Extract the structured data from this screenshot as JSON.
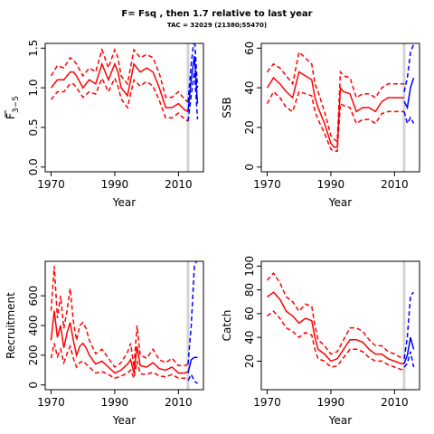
{
  "figure": {
    "title": "F= Fsq , then 1.7  relative to last year",
    "subtitle": "TAC = 32029 (21380;55470)"
  },
  "colors": {
    "historic": "#ff0000",
    "projection": "#0000ff",
    "marker": "#d3d3d3"
  },
  "chart_data": [
    {
      "type": "line",
      "ylabel": "F3-5",
      "xlabel": "Year",
      "ylabel_main": "F",
      "ylabel_sub": "3−5",
      "xlim": [
        1970,
        2016
      ],
      "ylim": [
        0,
        1.5
      ],
      "xticks": [
        1970,
        1990,
        2010
      ],
      "yticks": [
        0.0,
        0.5,
        1.0,
        1.5
      ],
      "xtick_labels": [
        "1970",
        "1990",
        "2010"
      ],
      "ytick_labels": [
        "0.0",
        "0.5",
        "1.0",
        "1.5"
      ],
      "marker_year": 2013,
      "historic": {
        "x": [
          1970,
          1972,
          1974,
          1976,
          1977,
          1978,
          1980,
          1982,
          1984,
          1986,
          1988,
          1990,
          1991,
          1992,
          1994,
          1996,
          1998,
          2000,
          2002,
          2004,
          2006,
          2008,
          2010,
          2012,
          2013
        ],
        "mid": [
          1.0,
          1.1,
          1.1,
          1.2,
          1.2,
          1.15,
          1.0,
          1.1,
          1.05,
          1.3,
          1.1,
          1.3,
          1.2,
          1.0,
          0.9,
          1.3,
          1.2,
          1.25,
          1.2,
          1.0,
          0.75,
          0.75,
          0.8,
          0.72,
          0.7
        ],
        "upper": [
          1.15,
          1.28,
          1.25,
          1.38,
          1.35,
          1.3,
          1.15,
          1.25,
          1.2,
          1.48,
          1.25,
          1.48,
          1.38,
          1.15,
          1.05,
          1.48,
          1.38,
          1.42,
          1.38,
          1.18,
          0.88,
          0.88,
          0.95,
          0.85,
          0.82
        ],
        "lower": [
          0.85,
          0.95,
          0.95,
          1.05,
          1.05,
          1.0,
          0.88,
          0.95,
          0.92,
          1.12,
          0.95,
          1.12,
          1.02,
          0.86,
          0.75,
          1.1,
          1.02,
          1.08,
          1.02,
          0.84,
          0.62,
          0.62,
          0.68,
          0.6,
          0.58
        ]
      },
      "projection": {
        "x": [
          2013,
          2014,
          2015,
          2016
        ],
        "mid": [
          0.7,
          1.1,
          1.4,
          0.8
        ],
        "upper": [
          0.82,
          1.3,
          1.65,
          1.0
        ],
        "lower": [
          0.58,
          0.9,
          1.2,
          0.6
        ]
      }
    },
    {
      "type": "line",
      "ylabel": "SSB",
      "xlabel": "Year",
      "xlim": [
        1970,
        2016
      ],
      "ylim": [
        0,
        60
      ],
      "xticks": [
        1970,
        1990,
        2010
      ],
      "yticks": [
        0,
        20,
        40,
        60
      ],
      "xtick_labels": [
        "1970",
        "1990",
        "2010"
      ],
      "ytick_labels": [
        "0",
        "20",
        "40",
        "60"
      ],
      "marker_year": 2013,
      "historic": {
        "x": [
          1970,
          1972,
          1974,
          1976,
          1978,
          1980,
          1982,
          1984,
          1985,
          1986,
          1988,
          1990,
          1991,
          1992,
          1993,
          1994,
          1996,
          1998,
          2000,
          2002,
          2004,
          2006,
          2008,
          2010,
          2012,
          2013
        ],
        "mid": [
          40,
          45,
          42,
          38,
          35,
          48,
          46,
          44,
          35,
          30,
          22,
          12,
          10,
          10,
          40,
          38,
          37,
          28,
          30,
          30,
          28,
          33,
          35,
          35,
          35,
          35
        ],
        "upper": [
          48,
          52,
          50,
          46,
          42,
          58,
          55,
          52,
          42,
          38,
          28,
          16,
          14,
          13,
          48,
          46,
          45,
          35,
          37,
          37,
          35,
          40,
          42,
          42,
          42,
          42
        ],
        "lower": [
          32,
          38,
          35,
          30,
          28,
          38,
          37,
          36,
          28,
          24,
          17,
          9,
          8,
          8,
          32,
          31,
          30,
          22,
          24,
          24,
          22,
          27,
          28,
          28,
          28,
          28
        ]
      },
      "projection": {
        "x": [
          2013,
          2014,
          2015,
          2016
        ],
        "mid": [
          33,
          30,
          40,
          45
        ],
        "upper": [
          38,
          45,
          58,
          62
        ],
        "lower": [
          28,
          22,
          25,
          22
        ]
      }
    },
    {
      "type": "line",
      "ylabel": "Recruitment",
      "xlabel": "Year",
      "xlim": [
        1970,
        2016
      ],
      "ylim": [
        0,
        800
      ],
      "xticks": [
        1970,
        1990,
        2010
      ],
      "yticks": [
        0,
        200,
        400,
        600
      ],
      "xtick_labels": [
        "1970",
        "1990",
        "2010"
      ],
      "ytick_labels": [
        "0",
        "200",
        "400",
        "600"
      ],
      "marker_year": 2013,
      "historic": {
        "x": [
          1970,
          1971,
          1972,
          1973,
          1974,
          1975,
          1976,
          1977,
          1978,
          1979,
          1980,
          1981,
          1982,
          1984,
          1986,
          1988,
          1990,
          1992,
          1994,
          1995,
          1996,
          1997,
          1998,
          2000,
          2002,
          2004,
          2006,
          2008,
          2010,
          2012,
          2013
        ],
        "mid": [
          300,
          500,
          320,
          400,
          250,
          350,
          420,
          300,
          200,
          260,
          280,
          250,
          200,
          140,
          160,
          120,
          80,
          100,
          140,
          170,
          80,
          260,
          130,
          120,
          150,
          110,
          100,
          120,
          80,
          80,
          90
        ],
        "upper": [
          500,
          800,
          450,
          600,
          380,
          500,
          650,
          430,
          300,
          400,
          420,
          380,
          300,
          210,
          240,
          180,
          120,
          150,
          220,
          280,
          120,
          400,
          200,
          180,
          240,
          170,
          150,
          180,
          130,
          130,
          140
        ],
        "lower": [
          180,
          280,
          190,
          240,
          150,
          210,
          260,
          180,
          120,
          150,
          160,
          140,
          120,
          80,
          90,
          70,
          45,
          60,
          80,
          100,
          45,
          160,
          75,
          70,
          85,
          60,
          55,
          70,
          45,
          45,
          50
        ]
      },
      "projection": {
        "x": [
          2013,
          2014,
          2015,
          2016
        ],
        "mid": [
          80,
          170,
          185,
          185
        ],
        "upper": [
          140,
          400,
          800,
          850
        ],
        "lower": [
          30,
          70,
          25,
          10
        ]
      }
    },
    {
      "type": "line",
      "ylabel": "Catch",
      "xlabel": "Year",
      "xlim": [
        1970,
        2016
      ],
      "ylim": [
        0,
        100
      ],
      "xticks": [
        1970,
        1990,
        2010
      ],
      "yticks": [
        20,
        40,
        60,
        80,
        100
      ],
      "xtick_labels": [
        "1970",
        "1990",
        "2010"
      ],
      "ytick_labels": [
        "20",
        "40",
        "60",
        "80",
        "100"
      ],
      "marker_year": 2013,
      "historic": {
        "x": [
          1970,
          1972,
          1974,
          1976,
          1978,
          1980,
          1982,
          1984,
          1985,
          1986,
          1988,
          1990,
          1992,
          1994,
          1996,
          1998,
          2000,
          2002,
          2004,
          2006,
          2008,
          2010,
          2012,
          2013
        ],
        "mid": [
          74,
          78,
          72,
          62,
          58,
          52,
          56,
          54,
          40,
          30,
          26,
          20,
          22,
          30,
          38,
          38,
          36,
          30,
          26,
          26,
          22,
          20,
          18,
          18
        ],
        "upper": [
          88,
          94,
          86,
          74,
          70,
          62,
          68,
          66,
          50,
          38,
          33,
          26,
          28,
          38,
          48,
          48,
          45,
          38,
          33,
          33,
          28,
          26,
          23,
          23
        ],
        "lower": [
          58,
          62,
          56,
          48,
          45,
          40,
          44,
          42,
          30,
          22,
          20,
          15,
          16,
          23,
          30,
          30,
          28,
          23,
          20,
          20,
          17,
          15,
          13,
          13
        ]
      },
      "projection": {
        "x": [
          2013,
          2014,
          2015,
          2016
        ],
        "mid": [
          18,
          25,
          40,
          30
        ],
        "upper": [
          22,
          40,
          75,
          78
        ],
        "lower": [
          15,
          18,
          28,
          15
        ]
      }
    }
  ]
}
